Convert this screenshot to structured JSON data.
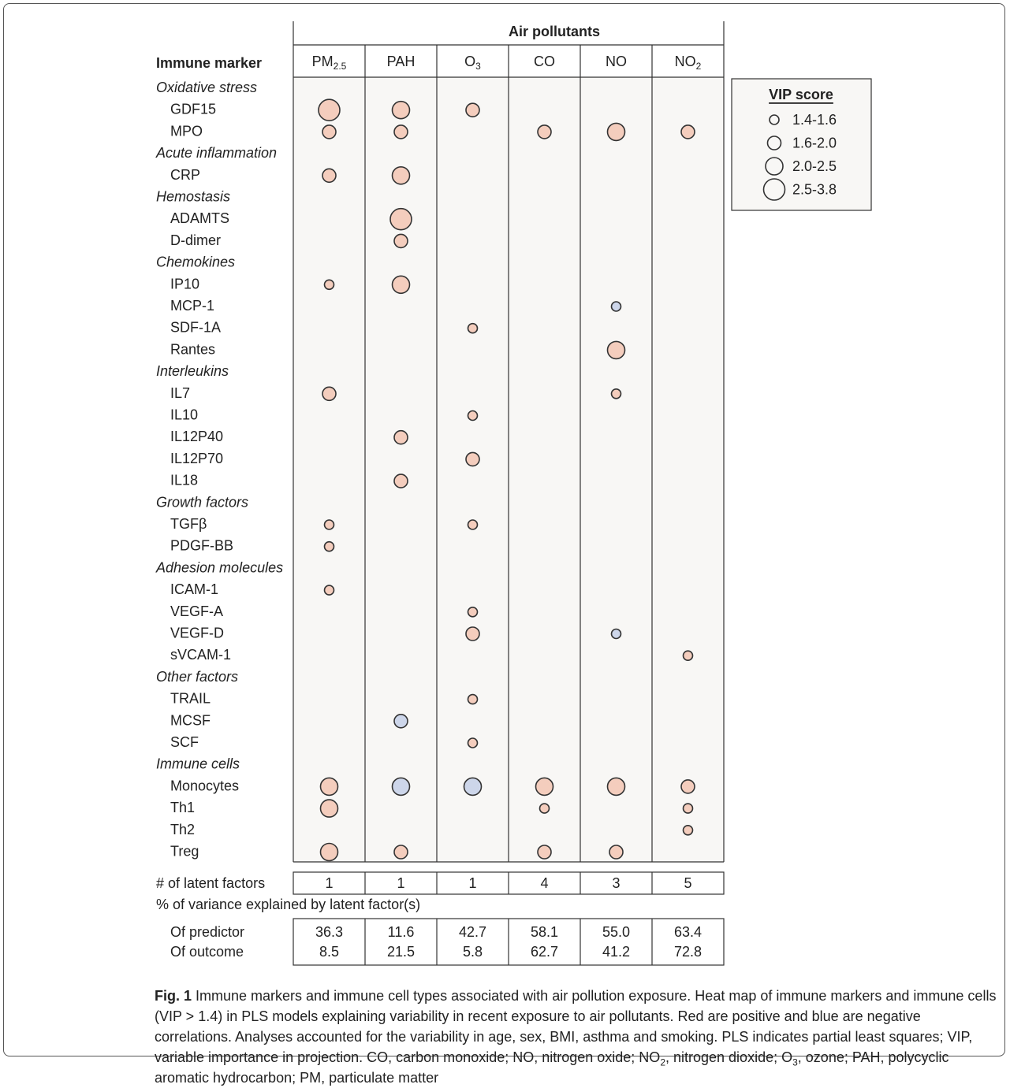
{
  "chart_data": {
    "type": "bubble-matrix",
    "header": "Air pollutants",
    "row_header": "Immune marker",
    "columns": [
      {
        "base": "PM",
        "sub": "2.5"
      },
      {
        "base": "PAH",
        "sub": ""
      },
      {
        "base": "O",
        "sub": "3"
      },
      {
        "base": "CO",
        "sub": ""
      },
      {
        "base": "NO",
        "sub": ""
      },
      {
        "base": "NO",
        "sub": "2"
      }
    ],
    "color_scale": {
      "positive": "#f4cdbd",
      "negative": "#cdd6ea"
    },
    "rows": [
      {
        "label": "Oxidative stress",
        "category": true
      },
      {
        "label": "GDF15",
        "cells": [
          {
            "col": 0,
            "vip": 3.0,
            "sign": "positive"
          },
          {
            "col": 1,
            "vip": 2.2,
            "sign": "positive"
          },
          {
            "col": 2,
            "vip": 1.7,
            "sign": "positive"
          }
        ]
      },
      {
        "label": "MPO",
        "cells": [
          {
            "col": 0,
            "vip": 1.8,
            "sign": "positive"
          },
          {
            "col": 1,
            "vip": 1.7,
            "sign": "positive"
          },
          {
            "col": 3,
            "vip": 1.8,
            "sign": "positive"
          },
          {
            "col": 4,
            "vip": 2.3,
            "sign": "positive"
          },
          {
            "col": 5,
            "vip": 1.8,
            "sign": "positive"
          }
        ]
      },
      {
        "label": "Acute inflammation",
        "category": true
      },
      {
        "label": "CRP",
        "cells": [
          {
            "col": 0,
            "vip": 1.8,
            "sign": "positive"
          },
          {
            "col": 1,
            "vip": 2.3,
            "sign": "positive"
          }
        ]
      },
      {
        "label": "Hemostasis",
        "category": true
      },
      {
        "label": "ADAMTS",
        "cells": [
          {
            "col": 1,
            "vip": 3.0,
            "sign": "positive"
          }
        ]
      },
      {
        "label": "D-dimer",
        "cells": [
          {
            "col": 1,
            "vip": 1.7,
            "sign": "positive"
          }
        ]
      },
      {
        "label": "Chemokines",
        "category": true
      },
      {
        "label": "IP10",
        "cells": [
          {
            "col": 0,
            "vip": 1.5,
            "sign": "positive"
          },
          {
            "col": 1,
            "vip": 2.3,
            "sign": "positive"
          }
        ]
      },
      {
        "label": "MCP-1",
        "cells": [
          {
            "col": 4,
            "vip": 1.5,
            "sign": "negative"
          }
        ]
      },
      {
        "label": "SDF-1A",
        "cells": [
          {
            "col": 2,
            "vip": 1.5,
            "sign": "positive"
          }
        ]
      },
      {
        "label": "Rantes",
        "cells": [
          {
            "col": 4,
            "vip": 2.3,
            "sign": "positive"
          }
        ]
      },
      {
        "label": "Interleukins",
        "category": true
      },
      {
        "label": "IL7",
        "cells": [
          {
            "col": 0,
            "vip": 1.8,
            "sign": "positive"
          },
          {
            "col": 4,
            "vip": 1.5,
            "sign": "positive"
          }
        ]
      },
      {
        "label": "IL10",
        "cells": [
          {
            "col": 2,
            "vip": 1.5,
            "sign": "positive"
          }
        ]
      },
      {
        "label": "IL12P40",
        "cells": [
          {
            "col": 1,
            "vip": 1.8,
            "sign": "positive"
          }
        ]
      },
      {
        "label": "IL12P70",
        "cells": [
          {
            "col": 2,
            "vip": 1.8,
            "sign": "positive"
          }
        ]
      },
      {
        "label": "IL18",
        "cells": [
          {
            "col": 1,
            "vip": 1.8,
            "sign": "positive"
          }
        ]
      },
      {
        "label": "Growth factors",
        "category": true
      },
      {
        "label": "TGFβ",
        "cells": [
          {
            "col": 0,
            "vip": 1.5,
            "sign": "positive"
          },
          {
            "col": 2,
            "vip": 1.5,
            "sign": "positive"
          }
        ]
      },
      {
        "label": "PDGF-BB",
        "cells": [
          {
            "col": 0,
            "vip": 1.5,
            "sign": "positive"
          }
        ]
      },
      {
        "label": "Adhesion molecules",
        "category": true
      },
      {
        "label": "ICAM-1",
        "cells": [
          {
            "col": 0,
            "vip": 1.5,
            "sign": "positive"
          }
        ]
      },
      {
        "label": "VEGF-A",
        "cells": [
          {
            "col": 2,
            "vip": 1.5,
            "sign": "positive"
          }
        ]
      },
      {
        "label": "VEGF-D",
        "cells": [
          {
            "col": 2,
            "vip": 1.8,
            "sign": "positive"
          },
          {
            "col": 4,
            "vip": 1.5,
            "sign": "negative"
          }
        ]
      },
      {
        "label": "sVCAM-1",
        "cells": [
          {
            "col": 5,
            "vip": 1.5,
            "sign": "positive"
          }
        ]
      },
      {
        "label": "Other factors",
        "category": true
      },
      {
        "label": "TRAIL",
        "cells": [
          {
            "col": 2,
            "vip": 1.5,
            "sign": "positive"
          }
        ]
      },
      {
        "label": "MCSF",
        "cells": [
          {
            "col": 1,
            "vip": 1.8,
            "sign": "negative"
          }
        ]
      },
      {
        "label": "SCF",
        "cells": [
          {
            "col": 2,
            "vip": 1.5,
            "sign": "positive"
          }
        ]
      },
      {
        "label": "Immune cells",
        "category": true
      },
      {
        "label": "Monocytes",
        "cells": [
          {
            "col": 0,
            "vip": 2.3,
            "sign": "positive"
          },
          {
            "col": 1,
            "vip": 2.3,
            "sign": "negative"
          },
          {
            "col": 2,
            "vip": 2.3,
            "sign": "negative"
          },
          {
            "col": 3,
            "vip": 2.3,
            "sign": "positive"
          },
          {
            "col": 4,
            "vip": 2.3,
            "sign": "positive"
          },
          {
            "col": 5,
            "vip": 1.8,
            "sign": "positive"
          }
        ]
      },
      {
        "label": "Th1",
        "cells": [
          {
            "col": 0,
            "vip": 2.3,
            "sign": "positive"
          },
          {
            "col": 3,
            "vip": 1.5,
            "sign": "positive"
          },
          {
            "col": 5,
            "vip": 1.5,
            "sign": "positive"
          }
        ]
      },
      {
        "label": "Th2",
        "cells": [
          {
            "col": 5,
            "vip": 1.5,
            "sign": "positive"
          }
        ]
      },
      {
        "label": "Treg",
        "cells": [
          {
            "col": 0,
            "vip": 2.3,
            "sign": "positive"
          },
          {
            "col": 1,
            "vip": 1.8,
            "sign": "positive"
          },
          {
            "col": 3,
            "vip": 1.8,
            "sign": "positive"
          },
          {
            "col": 4,
            "vip": 1.8,
            "sign": "positive"
          }
        ]
      }
    ],
    "legend": {
      "title": "VIP score",
      "items": [
        {
          "label": "1.4-1.6",
          "vip": 1.5
        },
        {
          "label": "1.6-2.0",
          "vip": 1.8
        },
        {
          "label": "2.0-2.5",
          "vip": 2.3
        },
        {
          "label": "2.5-3.8",
          "vip": 3.0
        }
      ]
    },
    "latent": {
      "label": "# of latent factors",
      "values": [
        "1",
        "1",
        "1",
        "4",
        "3",
        "5"
      ]
    },
    "variance": {
      "label": "% of variance explained by latent factor(s)",
      "predictor_label": "Of predictor",
      "outcome_label": "Of outcome",
      "predictor": [
        "36.3",
        "11.6",
        "42.7",
        "58.1",
        "55.0",
        "63.4"
      ],
      "outcome": [
        "8.5",
        "21.5",
        "5.8",
        "62.7",
        "41.2",
        "72.8"
      ]
    }
  },
  "caption": {
    "label": "Fig. 1",
    "text_1": " Immune markers and immune cell types associated with air pollution exposure. Heat map of immune markers and immune cells (VIP > 1.4) in PLS models explaining variability in recent exposure to air pollutants. Red are positive and blue are negative correlations. Analyses accounted for the variability in age, sex, BMI, asthma and smoking. PLS indicates partial least squares; VIP, variable importance in projection. CO, carbon monoxide; NO, nitrogen oxide; NO",
    "sub_1": "2",
    "text_2": ", nitrogen dioxide; O",
    "sub_2": "3",
    "text_3": ", ozone; PAH, polycyclic aromatic hydrocarbon; PM, particulate matter"
  }
}
